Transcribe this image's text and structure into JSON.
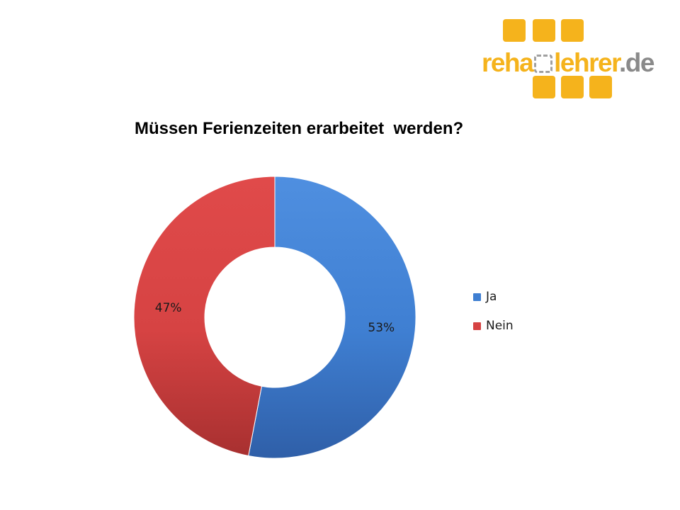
{
  "logo": {
    "part1": "reha",
    "part2": "lehrer",
    "part3": ".de",
    "accent_color": "#f5b31c",
    "secondary_color": "#8a8a8a"
  },
  "chart_data": {
    "type": "pie",
    "variant": "donut",
    "title": "Müssen Ferienzeiten erarbeitet  werden?",
    "categories": [
      "Ja",
      "Nein"
    ],
    "values": [
      53,
      47
    ],
    "labels": [
      "53%",
      "47%"
    ],
    "colors": [
      "#3f7fd2",
      "#d64343"
    ],
    "legend": {
      "position": "right",
      "entries": [
        "Ja",
        "Nein"
      ]
    }
  }
}
